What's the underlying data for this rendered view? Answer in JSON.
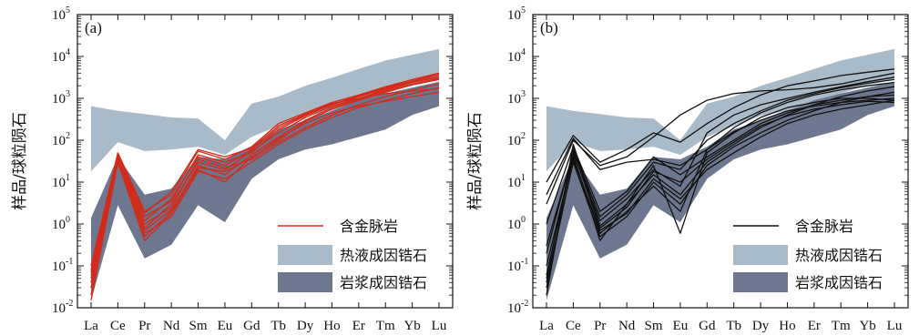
{
  "chart_data": [
    {
      "type": "line",
      "panel_label": "(a)",
      "ylabel": "样品/球粒陨石",
      "yscale": "log",
      "ylim": [
        0.01,
        100000
      ],
      "y_ticks": [
        {
          "base": "10",
          "exp": "-2"
        },
        {
          "base": "10",
          "exp": "-1"
        },
        {
          "base": "10",
          "exp": "0"
        },
        {
          "base": "10",
          "exp": "1"
        },
        {
          "base": "10",
          "exp": "2"
        },
        {
          "base": "10",
          "exp": "3"
        },
        {
          "base": "10",
          "exp": "4"
        },
        {
          "base": "10",
          "exp": "5"
        }
      ],
      "categories": [
        "La",
        "Ce",
        "Pr",
        "Nd",
        "Sm",
        "Eu",
        "Gd",
        "Tb",
        "Dy",
        "Ho",
        "Er",
        "Tm",
        "Yb",
        "Lu"
      ],
      "line_color": "#d42a1a",
      "legend": [
        {
          "label": "含金脉岩",
          "kind": "line",
          "color": "#d42a1a"
        },
        {
          "label": "热液成因锆石",
          "kind": "band",
          "color": "#a9bac9"
        },
        {
          "label": "岩浆成因锆石",
          "kind": "band",
          "color": "#6d7890"
        }
      ],
      "bands": [
        {
          "name": "热液成因锆石",
          "color": "#a9bac9",
          "x": [
            "La",
            "Ce",
            "Pr",
            "Nd",
            "Sm",
            "Eu",
            "Gd",
            "Tb",
            "Dy",
            "Ho",
            "Er",
            "Tm",
            "Yb",
            "Lu"
          ],
          "upper": [
            650,
            500,
            420,
            350,
            330,
            100,
            750,
            1100,
            2000,
            3100,
            5000,
            8000,
            11000,
            15000
          ],
          "lower": [
            18,
            90,
            55,
            60,
            70,
            45,
            120,
            220,
            380,
            500,
            800,
            1300,
            2100,
            2800
          ]
        },
        {
          "name": "岩浆成因锆石",
          "color": "#6d7890",
          "x": [
            "La",
            "Ce",
            "Pr",
            "Nd",
            "Sm",
            "Eu",
            "Gd",
            "Tb",
            "Dy",
            "Ho",
            "Er",
            "Tm",
            "Yb",
            "Lu"
          ],
          "upper": [
            1.4,
            40,
            5,
            7,
            40,
            35,
            70,
            180,
            300,
            500,
            900,
            1300,
            1800,
            2500
          ],
          "lower": [
            0.015,
            2.8,
            0.15,
            0.32,
            2.8,
            1.1,
            12,
            35,
            60,
            80,
            120,
            180,
            400,
            650
          ]
        }
      ],
      "series": [
        {
          "values": [
            0.06,
            45,
            1.2,
            4,
            40,
            25,
            60,
            200,
            400,
            700,
            1100,
            1700,
            2500,
            3500
          ]
        },
        {
          "values": [
            0.04,
            40,
            0.8,
            3,
            30,
            20,
            55,
            150,
            350,
            650,
            1000,
            1600,
            2400,
            3200
          ]
        },
        {
          "values": [
            0.03,
            35,
            0.5,
            2,
            25,
            15,
            45,
            120,
            300,
            600,
            950,
            1500,
            2200,
            3000
          ]
        },
        {
          "values": [
            0.015,
            30,
            0.4,
            1.8,
            20,
            10,
            40,
            100,
            280,
            550,
            900,
            1400,
            2100,
            2800
          ]
        },
        {
          "values": [
            0.1,
            50,
            2,
            5,
            55,
            35,
            70,
            250,
            450,
            800,
            1200,
            1900,
            2800,
            4000
          ]
        },
        {
          "values": [
            0.07,
            42,
            1.5,
            3.5,
            45,
            30,
            50,
            180,
            380,
            720,
            1150,
            1800,
            2600,
            3800
          ]
        },
        {
          "values": [
            0.05,
            38,
            1,
            2.5,
            35,
            22,
            35,
            90,
            200,
            400,
            700,
            1100,
            1600,
            2200
          ]
        },
        {
          "values": [
            0.02,
            28,
            0.6,
            1.5,
            18,
            12,
            30,
            80,
            180,
            350,
            600,
            900,
            1300,
            1800
          ]
        },
        {
          "values": [
            0.08,
            47,
            1.8,
            6,
            60,
            40,
            65,
            220,
            420,
            750,
            1000,
            1300,
            1500,
            1700
          ]
        },
        {
          "values": [
            0.03,
            33,
            0.7,
            2.2,
            22,
            18,
            38,
            110,
            250,
            450,
            650,
            850,
            1100,
            1400
          ]
        }
      ]
    },
    {
      "type": "line",
      "panel_label": "(b)",
      "ylabel": "样品/球粒陨石",
      "yscale": "log",
      "ylim": [
        0.01,
        100000
      ],
      "y_ticks": [
        {
          "base": "10",
          "exp": "-2"
        },
        {
          "base": "10",
          "exp": "-1"
        },
        {
          "base": "10",
          "exp": "0"
        },
        {
          "base": "10",
          "exp": "1"
        },
        {
          "base": "10",
          "exp": "2"
        },
        {
          "base": "10",
          "exp": "3"
        },
        {
          "base": "10",
          "exp": "4"
        },
        {
          "base": "10",
          "exp": "5"
        }
      ],
      "categories": [
        "La",
        "Ce",
        "Pr",
        "Nd",
        "Sm",
        "Eu",
        "Gd",
        "Tb",
        "Dy",
        "Ho",
        "Er",
        "Tm",
        "Yb",
        "Lu"
      ],
      "line_color": "#111111",
      "legend": [
        {
          "label": "含金脉岩",
          "kind": "line",
          "color": "#111111"
        },
        {
          "label": "热液成因锆石",
          "kind": "band",
          "color": "#a9bac9"
        },
        {
          "label": "岩浆成因锆石",
          "kind": "band",
          "color": "#6d7890"
        }
      ],
      "bands": [
        {
          "name": "热液成因锆石",
          "color": "#a9bac9",
          "x": [
            "La",
            "Ce",
            "Pr",
            "Nd",
            "Sm",
            "Eu",
            "Gd",
            "Tb",
            "Dy",
            "Ho",
            "Er",
            "Tm",
            "Yb",
            "Lu"
          ],
          "upper": [
            650,
            500,
            420,
            350,
            330,
            100,
            750,
            1100,
            2000,
            3100,
            5000,
            8000,
            11000,
            15000
          ],
          "lower": [
            18,
            90,
            55,
            60,
            70,
            45,
            120,
            220,
            380,
            500,
            800,
            1300,
            2100,
            2800
          ]
        },
        {
          "name": "岩浆成因锆石",
          "color": "#6d7890",
          "x": [
            "La",
            "Ce",
            "Pr",
            "Nd",
            "Sm",
            "Eu",
            "Gd",
            "Tb",
            "Dy",
            "Ho",
            "Er",
            "Tm",
            "Yb",
            "Lu"
          ],
          "upper": [
            1.4,
            40,
            5,
            7,
            40,
            35,
            70,
            180,
            300,
            500,
            900,
            1300,
            1800,
            2500
          ],
          "lower": [
            0.015,
            2.8,
            0.15,
            0.32,
            2.8,
            1.1,
            12,
            35,
            60,
            80,
            120,
            180,
            400,
            650
          ]
        }
      ],
      "series": [
        {
          "values": [
            0.02,
            80,
            0.9,
            3,
            15,
            5,
            30,
            80,
            200,
            400,
            700,
            1100,
            1500,
            1900
          ]
        },
        {
          "values": [
            10,
            130,
            30,
            60,
            150,
            90,
            250,
            600,
            1200,
            2000,
            2600,
            3500,
            4200,
            5000
          ]
        },
        {
          "values": [
            3,
            100,
            25,
            40,
            120,
            400,
            900,
            1300,
            1500,
            1600,
            1800,
            2200,
            3000,
            4000
          ]
        },
        {
          "values": [
            0.05,
            60,
            1.5,
            5,
            30,
            20,
            100,
            250,
            500,
            900,
            1300,
            1800,
            2300,
            2800
          ]
        },
        {
          "values": [
            0.1,
            40,
            0.6,
            2,
            8,
            2,
            60,
            200,
            450,
            800,
            1200,
            1600,
            2000,
            2400
          ]
        },
        {
          "values": [
            0.3,
            50,
            1.2,
            4,
            20,
            8,
            150,
            400,
            700,
            1000,
            1400,
            1900,
            2500,
            3200
          ]
        },
        {
          "values": [
            0.04,
            30,
            0.5,
            1.5,
            10,
            3,
            25,
            70,
            150,
            300,
            500,
            800,
            1100,
            1400
          ]
        },
        {
          "values": [
            1,
            70,
            2,
            6,
            40,
            15,
            40,
            100,
            250,
            450,
            700,
            900,
            1100,
            1200
          ]
        },
        {
          "values": [
            0.06,
            45,
            0.4,
            3,
            25,
            0.6,
            50,
            150,
            350,
            600,
            800,
            1000,
            1000,
            900
          ]
        },
        {
          "values": [
            5,
            110,
            20,
            30,
            35,
            25,
            60,
            160,
            300,
            500,
            650,
            800,
            900,
            1000
          ]
        },
        {
          "values": [
            0.2,
            55,
            0.8,
            2.5,
            18,
            10,
            35,
            90,
            220,
            380,
            550,
            700,
            850,
            800
          ]
        },
        {
          "values": [
            0.03,
            35,
            0.7,
            1.8,
            12,
            4,
            20,
            50,
            120,
            250,
            400,
            550,
            700,
            900
          ]
        }
      ]
    }
  ]
}
